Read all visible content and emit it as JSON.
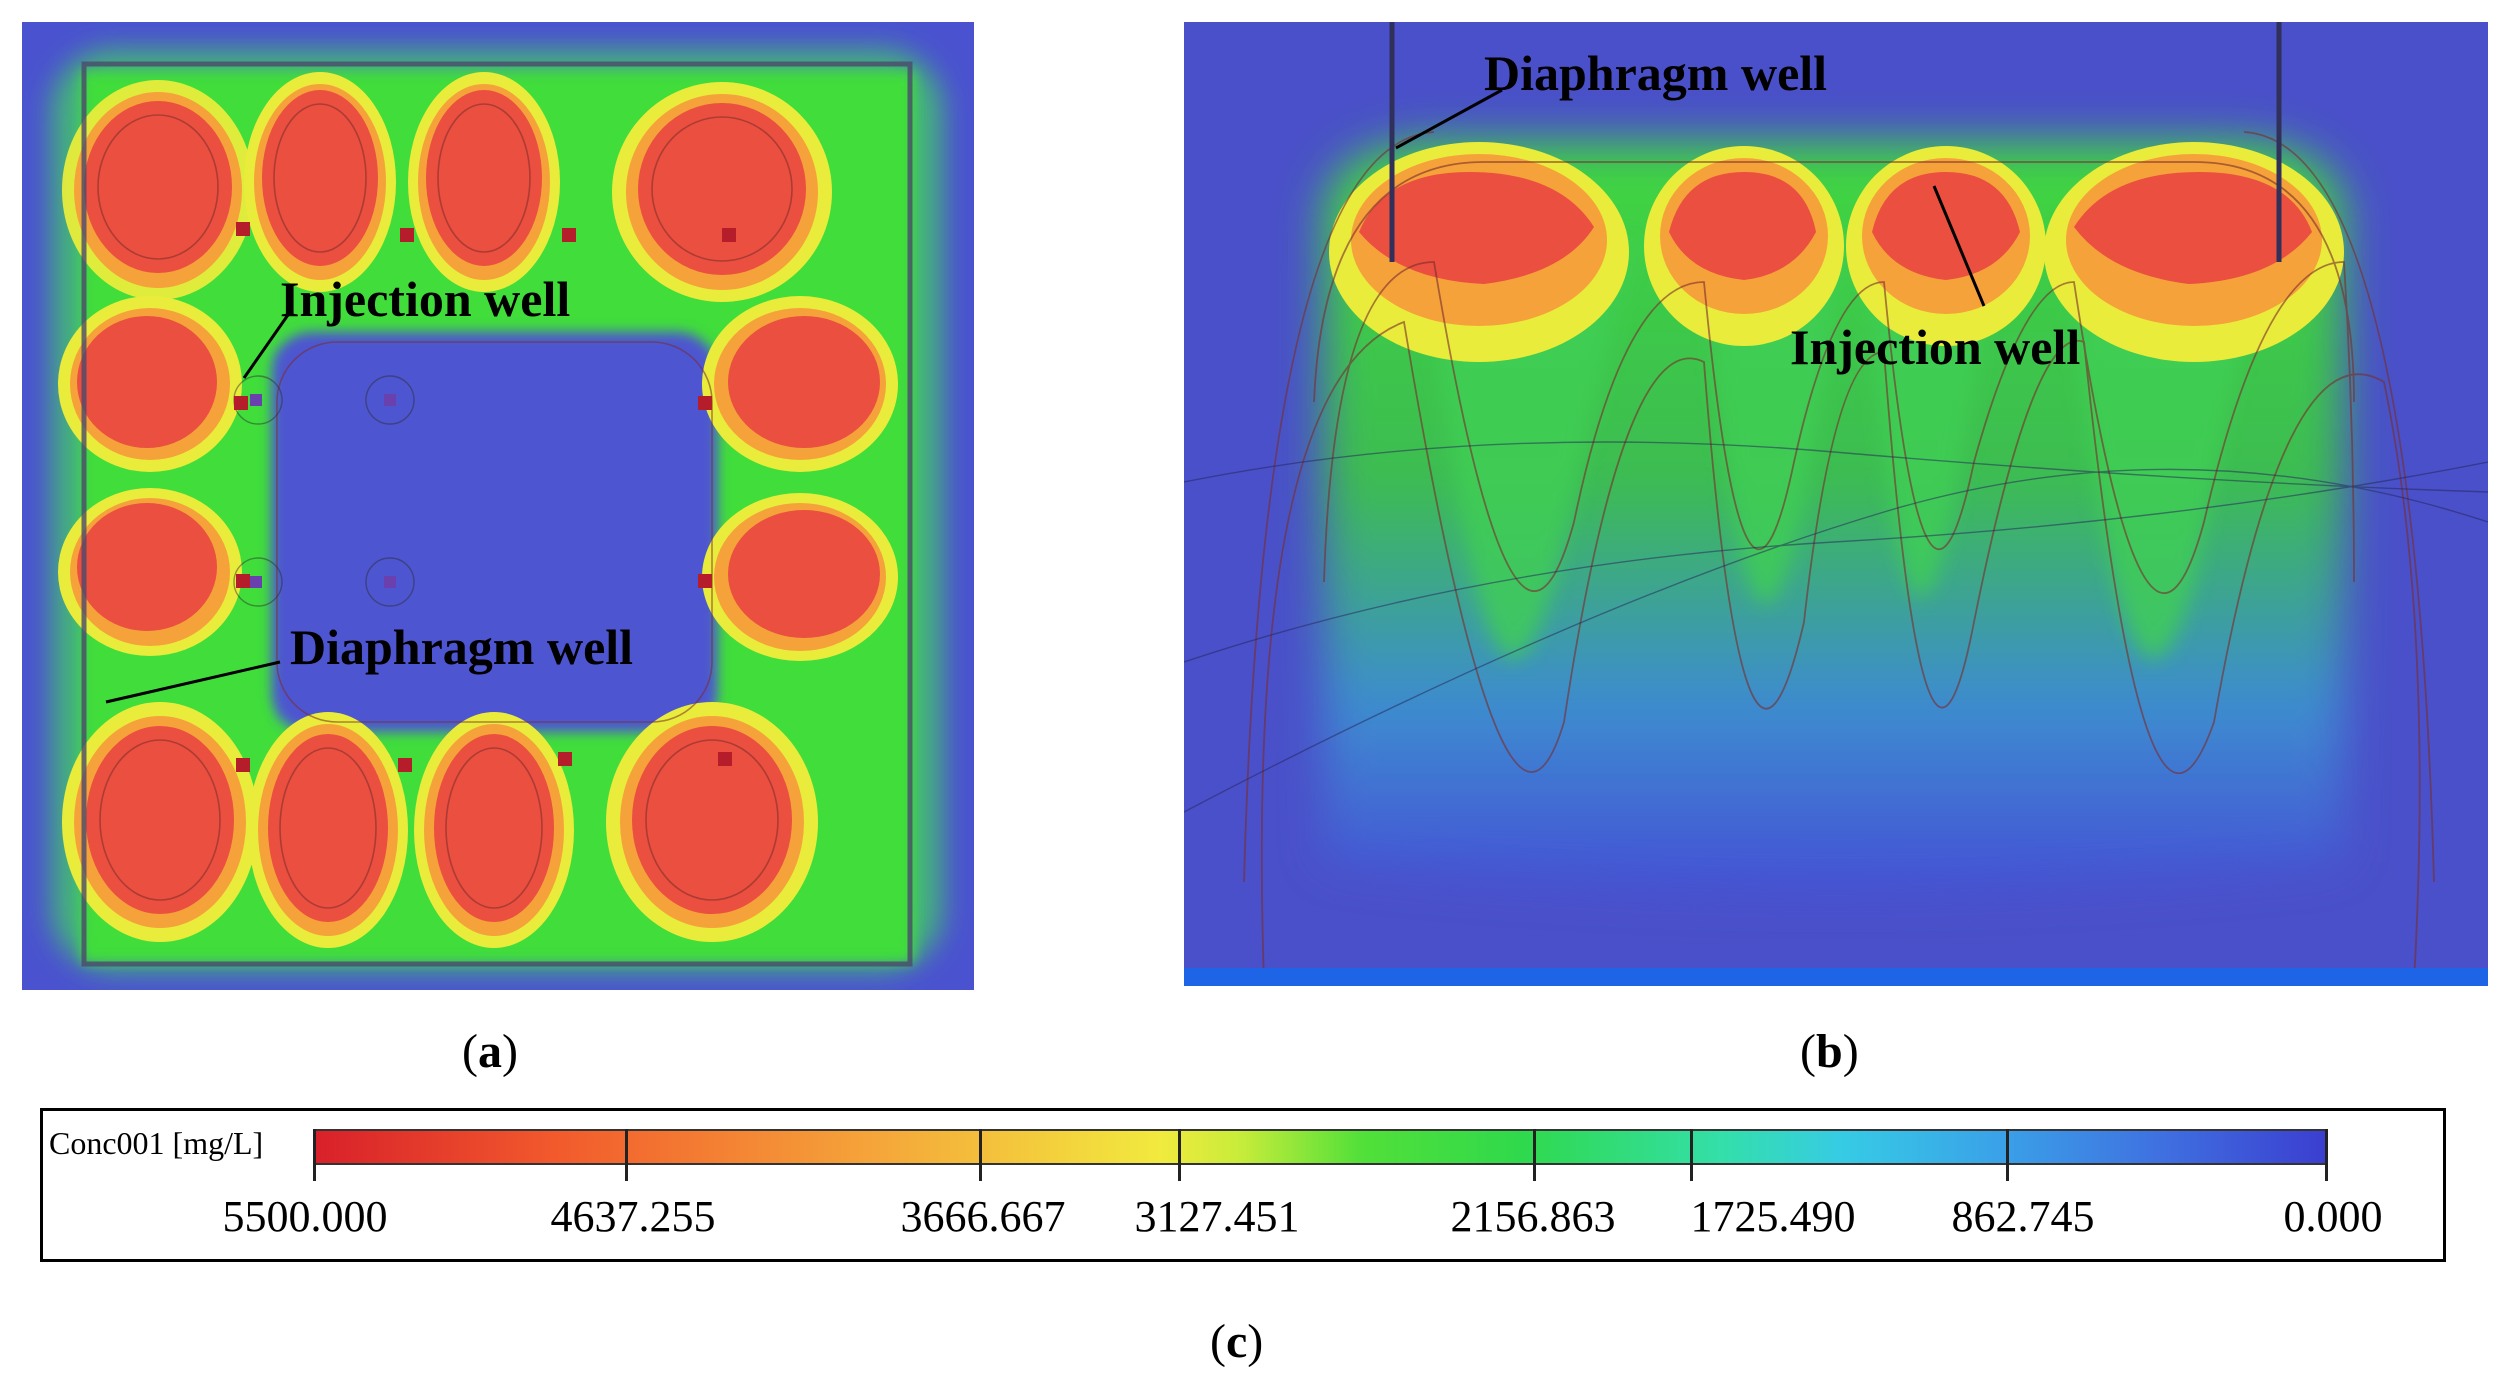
{
  "figure": {
    "panel_a": {
      "label_injection": "Injection well",
      "label_diaphragm": "Diaphragm well",
      "caption": "a"
    },
    "panel_b": {
      "label_diaphragm": "Diaphragm well",
      "label_injection": "Injection well",
      "caption": "b"
    },
    "legend": {
      "title": "Conc001 [mg/L]",
      "ticks": [
        "5500.000",
        "4637.255",
        "3666.667",
        "3127.451",
        "2156.863",
        "1725.490",
        "862.745",
        "0.000"
      ],
      "caption": "c"
    },
    "colors": {
      "high": "#e64b3c",
      "mid": "#4ade3a",
      "low": "#4046d2"
    }
  }
}
